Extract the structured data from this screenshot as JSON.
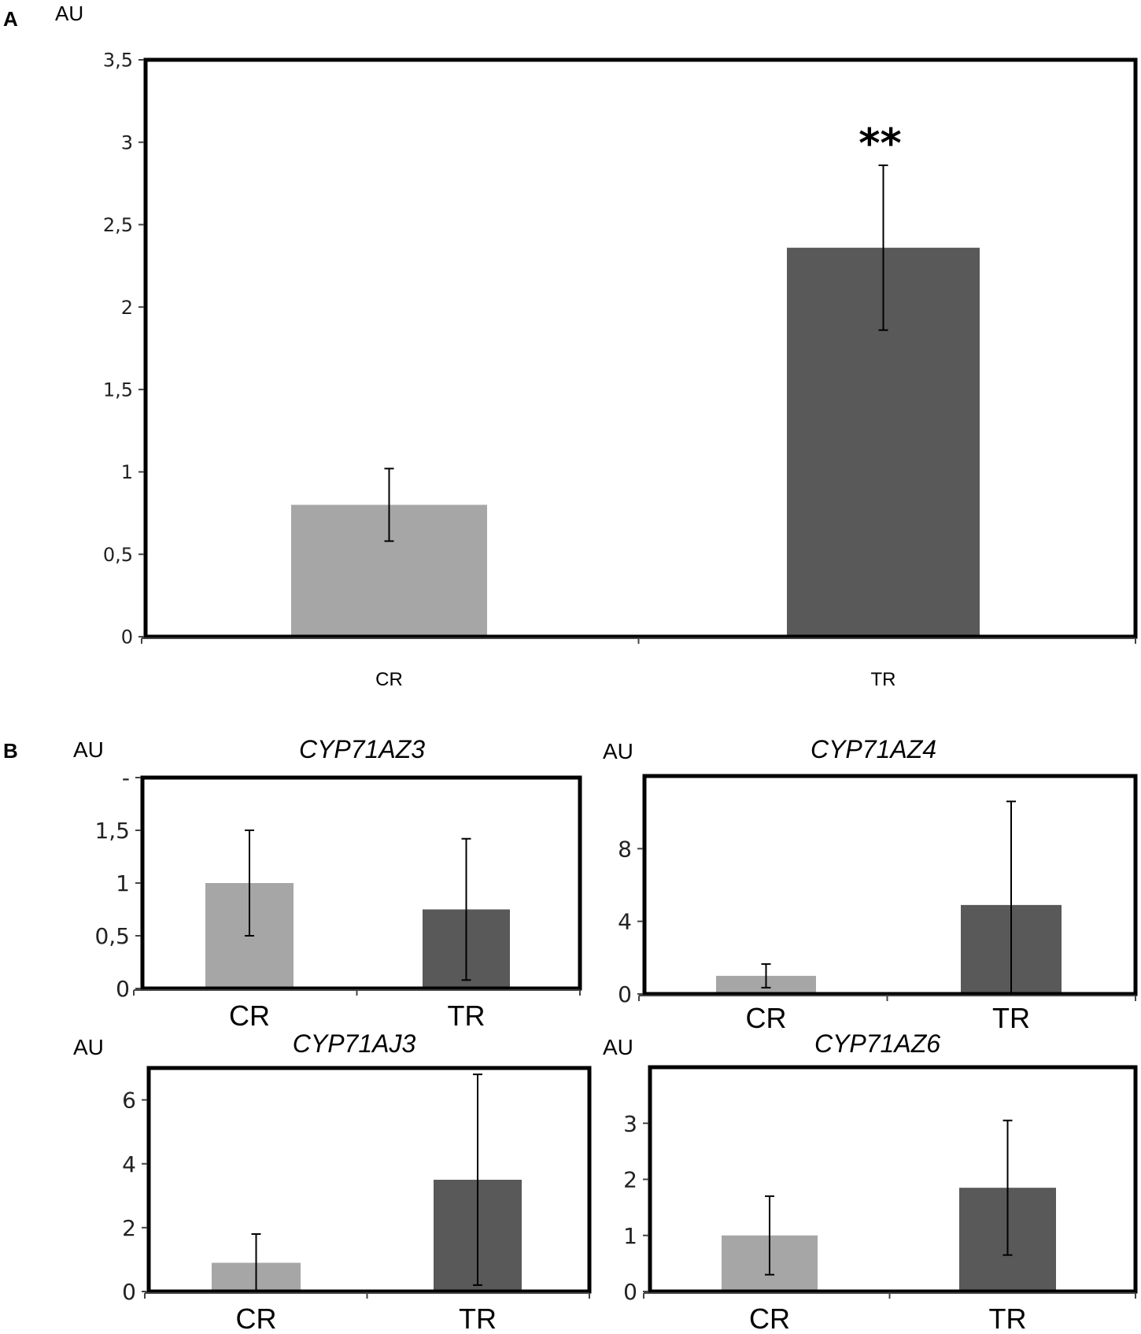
{
  "figure": {
    "panel_a_letter": "A",
    "panel_b_letter": "B",
    "unit_label": "AU"
  },
  "chart_data": [
    {
      "type": "bar",
      "panel": "A",
      "title": "",
      "ylabel": "AU",
      "categories": [
        "CR",
        "TR"
      ],
      "values": [
        0.8,
        2.36
      ],
      "error": [
        0.22,
        0.5
      ],
      "colors": [
        "#a6a6a6",
        "#595959"
      ],
      "ylim": [
        0,
        3.5
      ],
      "yticks": [
        0,
        0.5,
        1,
        1.5,
        2,
        2.5,
        3,
        3.5
      ],
      "ytick_labels": [
        "0",
        "0,5",
        "1",
        "1,5",
        "2",
        "2,5",
        "3",
        "3,5"
      ],
      "annotations": [
        {
          "category": "TR",
          "text": "**"
        }
      ]
    },
    {
      "type": "bar",
      "panel": "B",
      "title": "CYP71AZ3",
      "ylabel": "AU",
      "categories": [
        "CR",
        "TR"
      ],
      "values": [
        1.0,
        0.75
      ],
      "error": [
        0.5,
        0.67
      ],
      "colors": [
        "#a6a6a6",
        "#595959"
      ],
      "ylim": [
        0,
        2.0
      ],
      "yticks": [
        0,
        0.5,
        1,
        1.5,
        2.0
      ],
      "ytick_labels": [
        "0",
        "0,5",
        "1",
        "1,5",
        "-"
      ]
    },
    {
      "type": "bar",
      "panel": "B",
      "title": "CYP71AZ4",
      "ylabel": "AU",
      "categories": [
        "CR",
        "TR"
      ],
      "values": [
        1.0,
        4.9
      ],
      "error": [
        0.65,
        5.7
      ],
      "colors": [
        "#a6a6a6",
        "#595959"
      ],
      "ylim": [
        0,
        12
      ],
      "yticks": [
        0,
        4,
        8
      ],
      "ytick_labels": [
        "0",
        "4",
        "8"
      ]
    },
    {
      "type": "bar",
      "panel": "B",
      "title": "CYP71AJ3",
      "ylabel": "AU",
      "categories": [
        "CR",
        "TR"
      ],
      "values": [
        0.9,
        3.5
      ],
      "error": [
        0.9,
        3.3
      ],
      "colors": [
        "#a6a6a6",
        "#595959"
      ],
      "ylim": [
        0,
        7
      ],
      "yticks": [
        0,
        2,
        4,
        6
      ],
      "ytick_labels": [
        "0",
        "2",
        "4",
        "6"
      ]
    },
    {
      "type": "bar",
      "panel": "B",
      "title": "CYP71AZ6",
      "ylabel": "AU",
      "categories": [
        "CR",
        "TR"
      ],
      "values": [
        1.0,
        1.85
      ],
      "error": [
        0.7,
        1.2
      ],
      "colors": [
        "#a6a6a6",
        "#595959"
      ],
      "ylim": [
        0,
        4
      ],
      "yticks": [
        0,
        1,
        2,
        3
      ],
      "ytick_labels": [
        "0",
        "1",
        "2",
        "3"
      ]
    }
  ]
}
